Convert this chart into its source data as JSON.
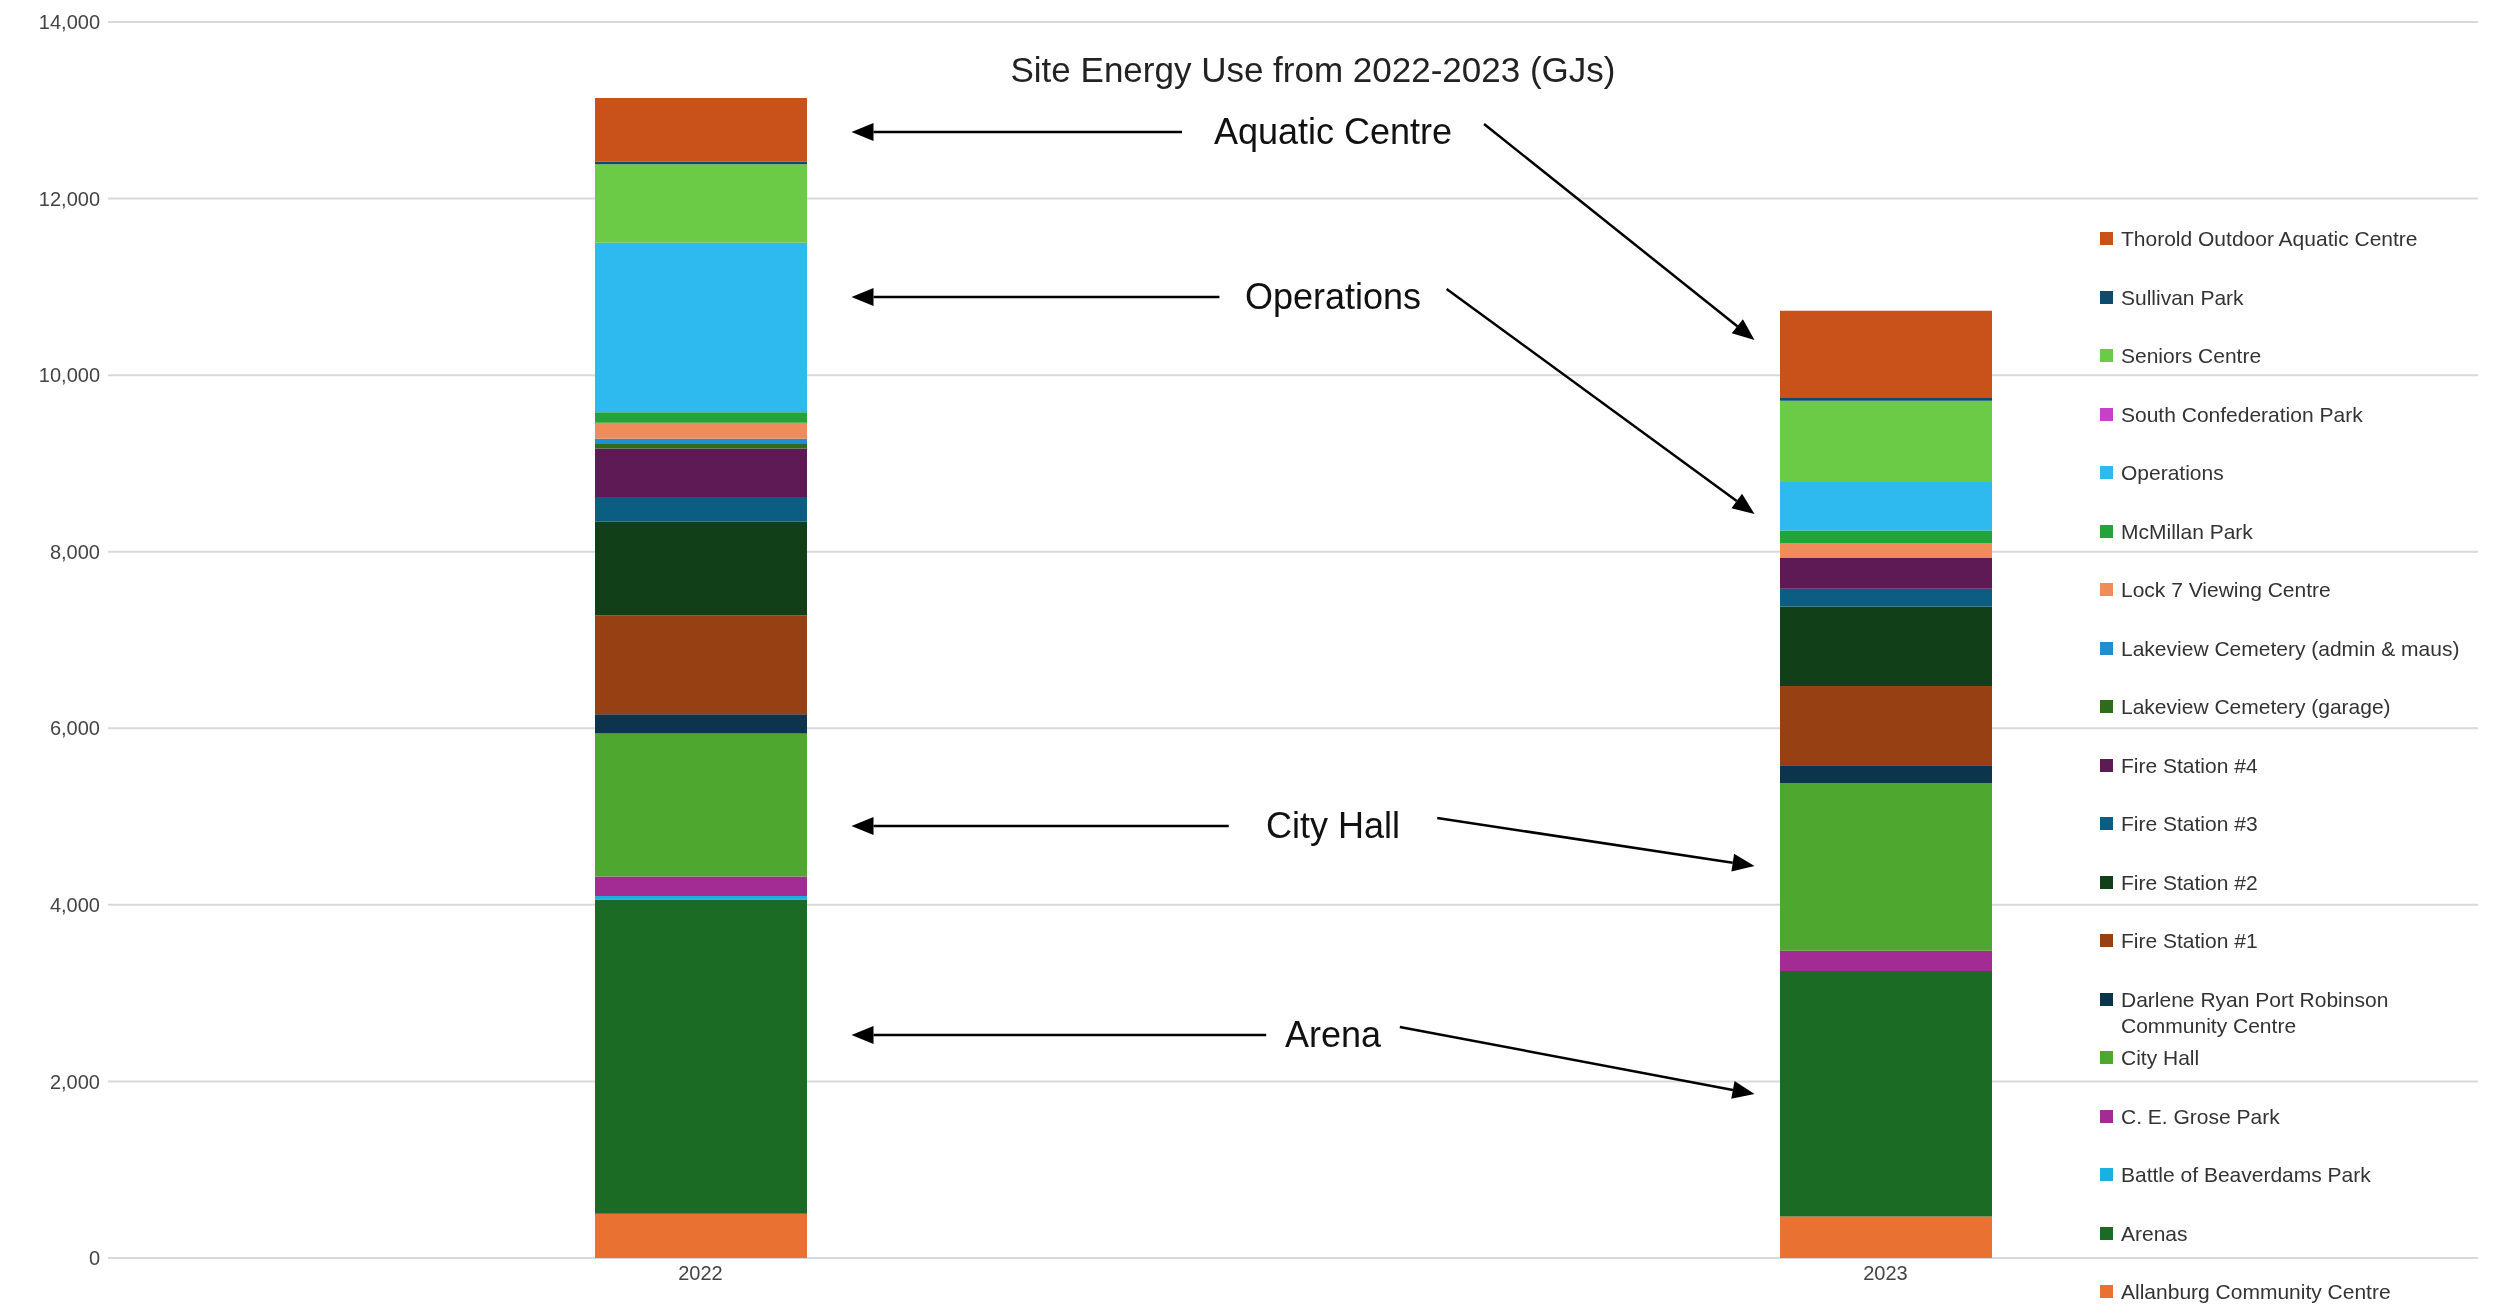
{
  "chart_data": {
    "type": "bar",
    "title": "Site Energy Use from 2022-2023 (GJs)",
    "categories": [
      "2022",
      "2023"
    ],
    "stacked": true,
    "ylim": [
      0,
      14000
    ],
    "yticks": [
      {
        "value": 0,
        "label": "0"
      },
      {
        "value": 2000,
        "label": "2,000"
      },
      {
        "value": 4000,
        "label": "4,000"
      },
      {
        "value": 6000,
        "label": "6,000"
      },
      {
        "value": 8000,
        "label": "8,000"
      },
      {
        "value": 10000,
        "label": "10,000"
      },
      {
        "value": 12000,
        "label": "12,000"
      },
      {
        "value": 14000,
        "label": "14,000"
      }
    ],
    "grid": "y",
    "legend": "right",
    "series": [
      {
        "name": "Allanburg Community Centre",
        "color": "#e97132",
        "values": [
          500,
          470
        ]
      },
      {
        "name": "Arenas",
        "color": "#1b6b24",
        "values": [
          3560,
          2780
        ]
      },
      {
        "name": "Battle of Beaverdams Park",
        "color": "#1ab0e0",
        "values": [
          40,
          0
        ]
      },
      {
        "name": "C. E. Grose Park",
        "color": "#a22b94",
        "values": [
          220,
          230
        ]
      },
      {
        "name": "City Hall",
        "color": "#4ea72e",
        "values": [
          1620,
          1900
        ]
      },
      {
        "name": "Darlene Ryan Port Robinson Community Centre",
        "color": "#0c344c",
        "values": [
          220,
          200
        ]
      },
      {
        "name": "Fire Station #1",
        "color": "#974013",
        "values": [
          1120,
          900
        ]
      },
      {
        "name": "Fire Station #2",
        "color": "#103f18",
        "values": [
          1060,
          900
        ]
      },
      {
        "name": "Fire Station #3",
        "color": "#0b5d82",
        "values": [
          280,
          200
        ]
      },
      {
        "name": "Fire Station #4",
        "color": "#5e1a54",
        "values": [
          550,
          350
        ]
      },
      {
        "name": "Lakeview Cemetery (garage)",
        "color": "#2e6b1e",
        "values": [
          50,
          0
        ]
      },
      {
        "name": "Lakeview Cemetery (admin & maus)",
        "color": "#1f8fcf",
        "values": [
          60,
          0
        ]
      },
      {
        "name": "Lock 7 Viewing Centre",
        "color": "#ef8c5a",
        "values": [
          180,
          170
        ]
      },
      {
        "name": "McMillan Park",
        "color": "#22a43a",
        "values": [
          120,
          140
        ]
      },
      {
        "name": "Operations",
        "color": "#2eb9ef",
        "values": [
          1920,
          550
        ]
      },
      {
        "name": "South Confederation Park",
        "color": "#c83fc8",
        "values": [
          0,
          0
        ]
      },
      {
        "name": "Seniors Centre",
        "color": "#6bcb46",
        "values": [
          890,
          920
        ]
      },
      {
        "name": "Sullivan Park",
        "color": "#0e4a6b",
        "values": [
          30,
          30
        ]
      },
      {
        "name": "Thorold Outdoor Aquatic Centre",
        "color": "#c9521a",
        "values": [
          720,
          990
        ]
      }
    ],
    "annotations": [
      "Aquatic Centre",
      "Operations",
      "City Hall",
      "Arena"
    ]
  }
}
